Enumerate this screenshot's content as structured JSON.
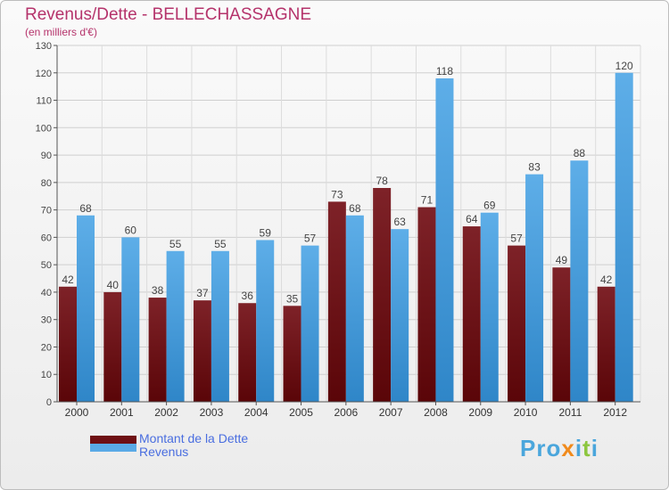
{
  "chart_data": {
    "type": "bar",
    "title": "Revenus/Dette - BELLECHASSAGNE",
    "subtitle": "(en milliers d'€)",
    "categories": [
      "2000",
      "2001",
      "2002",
      "2003",
      "2004",
      "2005",
      "2006",
      "2007",
      "2008",
      "2009",
      "2010",
      "2011",
      "2012"
    ],
    "series": [
      {
        "name": "Montant de la Dette",
        "color": "#6e1014",
        "values": [
          42,
          40,
          38,
          37,
          36,
          35,
          73,
          78,
          71,
          64,
          57,
          49,
          42
        ]
      },
      {
        "name": "Revenus",
        "color": "#5aaae6",
        "values": [
          68,
          60,
          55,
          55,
          59,
          57,
          68,
          63,
          118,
          69,
          83,
          88,
          120
        ]
      }
    ],
    "ylim": [
      0,
      130
    ],
    "yticks": [
      0,
      10,
      20,
      30,
      40,
      50,
      60,
      70,
      80,
      90,
      100,
      110,
      120,
      130
    ],
    "grid": true,
    "legend": "bottom-left"
  },
  "logo": {
    "text": "Proxiti"
  }
}
